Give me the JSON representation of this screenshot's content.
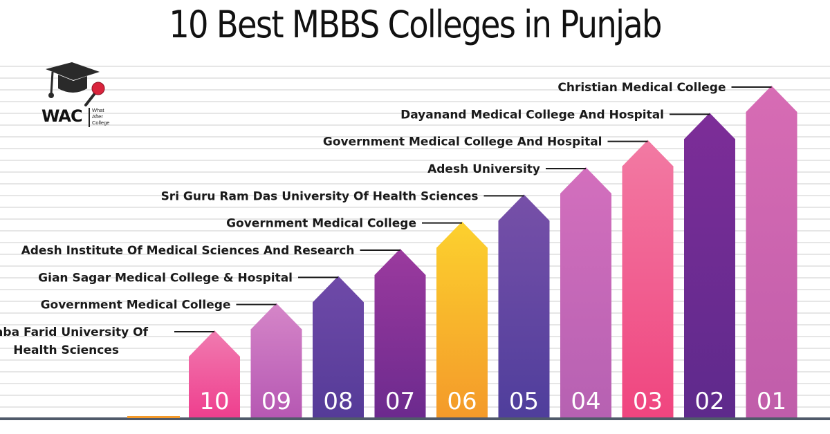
{
  "title": "10 Best MBBS Colleges in Punjab",
  "logo": {
    "name": "WAC",
    "sub": [
      "What",
      "After",
      "College"
    ]
  },
  "chart_data": {
    "type": "bar",
    "title": "10 Best MBBS Colleges in Punjab",
    "categories": [
      "10",
      "09",
      "08",
      "07",
      "06",
      "05",
      "04",
      "03",
      "02",
      "01"
    ],
    "values": [
      1,
      2,
      3,
      4,
      5,
      6,
      7,
      8,
      9,
      10
    ],
    "bars": [
      {
        "rank": "10",
        "label": [
          "Baba Farid University Of",
          "Health Sciences"
        ],
        "top": "#f07bb0",
        "bottom": "#ef3f8e"
      },
      {
        "rank": "09",
        "label": [
          "Government Medical College"
        ],
        "top": "#d586c8",
        "bottom": "#b658b3"
      },
      {
        "rank": "08",
        "label": [
          "Gian Sagar Medical College & Hospital"
        ],
        "top": "#6f4aa8",
        "bottom": "#553b98"
      },
      {
        "rank": "07",
        "label": [
          "Adesh Institute Of Medical Sciences And Research"
        ],
        "top": "#9b3a9e",
        "bottom": "#6c2a8e"
      },
      {
        "rank": "06",
        "label": [
          "Government Medical College"
        ],
        "top": "#fcd12e",
        "bottom": "#f49a2a"
      },
      {
        "rank": "05",
        "label": [
          "Sri Guru Ram Das University Of Health Sciences"
        ],
        "top": "#7750a8",
        "bottom": "#4f3e9c"
      },
      {
        "rank": "04",
        "label": [
          "Adesh University"
        ],
        "top": "#d36fbd",
        "bottom": "#b661b2"
      },
      {
        "rank": "03",
        "label": [
          "Government Medical College And Hospital"
        ],
        "top": "#f27aa3",
        "bottom": "#f0457f"
      },
      {
        "rank": "02",
        "label": [
          "Dayanand Medical College And Hospital"
        ],
        "top": "#7d2d98",
        "bottom": "#5e2a8c"
      },
      {
        "rank": "01",
        "label": [
          "Christian Medical College"
        ],
        "top": "#d76cb4",
        "bottom": "#c05daa"
      }
    ]
  }
}
